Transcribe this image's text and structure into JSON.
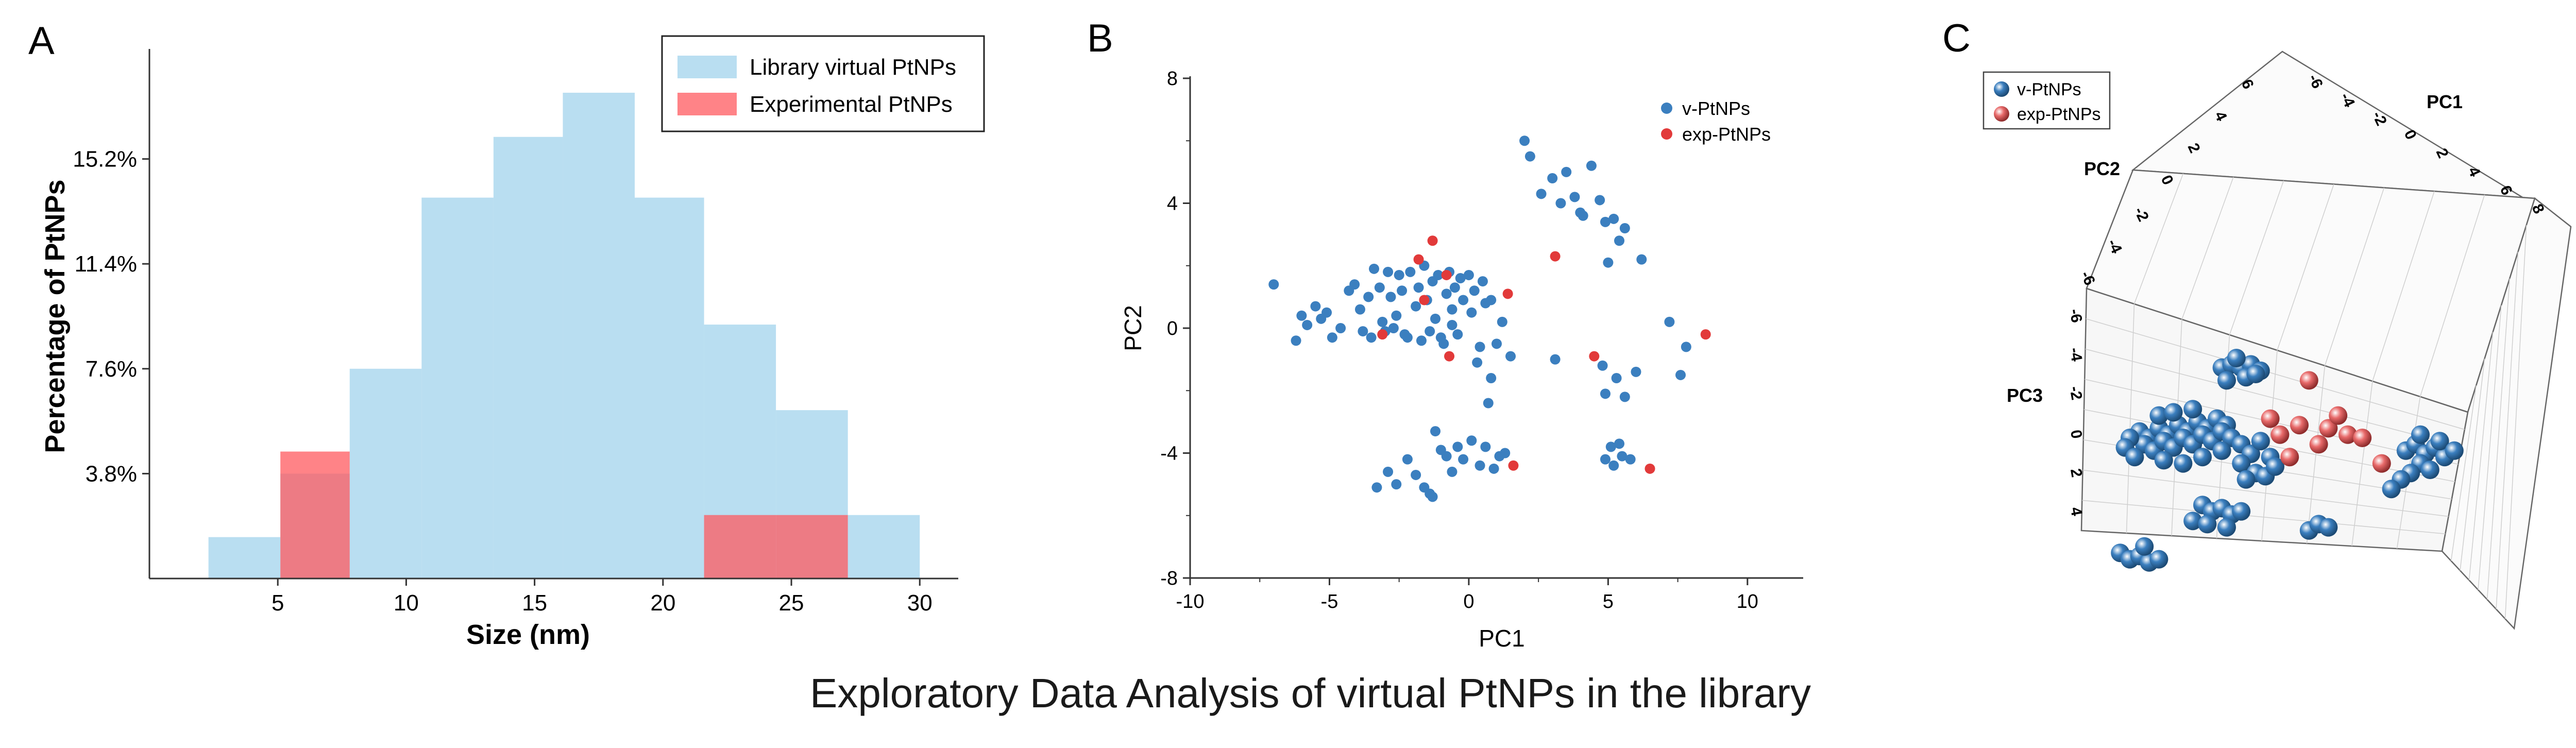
{
  "caption": "Exploratory Data Analysis of virtual PtNPs in the library",
  "colors": {
    "library": "#add8ee",
    "experimental": "#ff5a5f",
    "vptnps": "#3b7fbf",
    "expptnps": "#e23a3a",
    "axis": "#333333"
  },
  "panels": {
    "A": {
      "letter": "A"
    },
    "B": {
      "letter": "B"
    },
    "C": {
      "letter": "C"
    }
  },
  "chart_data": [
    {
      "panel": "A",
      "type": "bar",
      "subtype": "overlapping histogram",
      "xlabel": "Size (nm)",
      "ylabel": "Percentage of PtNPs",
      "xlim": [
        0,
        31.5
      ],
      "ylim": [
        0,
        19
      ],
      "xticks": [
        5,
        10,
        15,
        20,
        25,
        30
      ],
      "xtick_labels": [
        "5",
        "10",
        "15",
        "20",
        "25",
        "30"
      ],
      "yticks": [
        3.8,
        7.6,
        11.4,
        15.2
      ],
      "ytick_labels": [
        "3.8%",
        "7.6%",
        "11.4%",
        "15.2%"
      ],
      "bin_edges": [
        2.3,
        5.1,
        7.8,
        10.6,
        13.4,
        16.1,
        18.9,
        21.6,
        24.4,
        27.2,
        30.0
      ],
      "series": [
        {
          "name": "Library virtual PtNPs",
          "color": "#add8ee",
          "values": [
            1.5,
            3.8,
            7.6,
            13.8,
            16.0,
            17.6,
            13.8,
            9.2,
            6.1,
            2.3
          ]
        },
        {
          "name": "Experimental PtNPs",
          "color": "#ff5a5f",
          "values": [
            0,
            4.6,
            0,
            0,
            0,
            0,
            0,
            2.3,
            2.3,
            0
          ]
        }
      ],
      "legend_position": "top-right"
    },
    {
      "panel": "B",
      "type": "scatter",
      "xlabel": "PC1",
      "ylabel": "PC2",
      "xlim": [
        -10,
        12
      ],
      "ylim": [
        -8,
        8
      ],
      "xticks": [
        -10,
        -5,
        0,
        5,
        10
      ],
      "xtick_labels": [
        "-10",
        "-5",
        "0",
        "5",
        "10"
      ],
      "yticks": [
        -8,
        -4,
        0,
        4,
        8
      ],
      "ytick_labels": [
        "-8",
        "-4",
        "0",
        "4",
        "8"
      ],
      "legend_position": "top-right",
      "series": [
        {
          "name": "v-PtNPs",
          "color": "#3b7fbf",
          "points": [
            [
              -7.0,
              1.4
            ],
            [
              -6.2,
              -0.4
            ],
            [
              -6.0,
              0.4
            ],
            [
              -5.8,
              0.1
            ],
            [
              -5.5,
              0.7
            ],
            [
              -5.3,
              0.3
            ],
            [
              -5.1,
              0.5
            ],
            [
              -4.9,
              -0.3
            ],
            [
              -4.6,
              0.0
            ],
            [
              -4.3,
              1.2
            ],
            [
              -4.1,
              1.4
            ],
            [
              -3.9,
              0.6
            ],
            [
              -3.8,
              -0.1
            ],
            [
              -3.6,
              1.0
            ],
            [
              -3.4,
              1.9
            ],
            [
              -3.2,
              1.3
            ],
            [
              -3.1,
              0.2
            ],
            [
              -2.9,
              1.8
            ],
            [
              -2.8,
              1.0
            ],
            [
              -2.6,
              0.4
            ],
            [
              -2.5,
              1.7
            ],
            [
              -2.4,
              1.2
            ],
            [
              -2.2,
              -0.3
            ],
            [
              -2.1,
              1.8
            ],
            [
              -1.9,
              0.7
            ],
            [
              -1.8,
              1.3
            ],
            [
              -1.7,
              -0.4
            ],
            [
              -1.6,
              2.0
            ],
            [
              -1.5,
              0.9
            ],
            [
              -1.3,
              1.5
            ],
            [
              -1.2,
              0.3
            ],
            [
              -1.1,
              1.7
            ],
            [
              -0.9,
              -0.5
            ],
            [
              -0.8,
              1.1
            ],
            [
              -0.7,
              1.8
            ],
            [
              -0.6,
              0.6
            ],
            [
              -0.5,
              1.3
            ],
            [
              -0.4,
              -0.2
            ],
            [
              -0.3,
              1.6
            ],
            [
              -0.2,
              0.9
            ],
            [
              0.0,
              1.7
            ],
            [
              0.1,
              0.5
            ],
            [
              0.2,
              1.2
            ],
            [
              0.4,
              -0.6
            ],
            [
              0.5,
              1.5
            ],
            [
              0.6,
              0.8
            ],
            [
              0.8,
              0.9
            ],
            [
              1.0,
              -0.5
            ],
            [
              1.2,
              0.2
            ],
            [
              1.5,
              -0.9
            ],
            [
              -3.5,
              -0.3
            ],
            [
              -3.0,
              -0.1
            ],
            [
              -2.7,
              0.0
            ],
            [
              -2.3,
              -0.2
            ],
            [
              -1.4,
              -0.1
            ],
            [
              -1.0,
              -0.3
            ],
            [
              -0.6,
              0.1
            ],
            [
              0.3,
              -1.1
            ],
            [
              0.8,
              -1.6
            ],
            [
              0.7,
              -2.4
            ],
            [
              -3.3,
              -5.1
            ],
            [
              -2.9,
              -4.6
            ],
            [
              -2.6,
              -5.0
            ],
            [
              -2.2,
              -4.2
            ],
            [
              -1.9,
              -4.7
            ],
            [
              -1.6,
              -5.1
            ],
            [
              -1.4,
              -5.3
            ],
            [
              -1.2,
              -3.3
            ],
            [
              -1.0,
              -3.9
            ],
            [
              -0.8,
              -4.1
            ],
            [
              -0.6,
              -4.6
            ],
            [
              -0.4,
              -3.8
            ],
            [
              -0.2,
              -4.2
            ],
            [
              0.1,
              -3.6
            ],
            [
              0.4,
              -4.4
            ],
            [
              0.6,
              -3.8
            ],
            [
              0.9,
              -4.5
            ],
            [
              1.1,
              -4.1
            ],
            [
              1.3,
              -4.0
            ],
            [
              -1.3,
              -5.4
            ],
            [
              2.0,
              6.0
            ],
            [
              2.2,
              5.5
            ],
            [
              2.6,
              4.3
            ],
            [
              3.0,
              4.8
            ],
            [
              3.3,
              4.0
            ],
            [
              3.5,
              5.0
            ],
            [
              3.8,
              4.2
            ],
            [
              4.1,
              3.6
            ],
            [
              4.4,
              5.2
            ],
            [
              4.7,
              4.1
            ],
            [
              4.9,
              3.4
            ],
            [
              5.2,
              3.5
            ],
            [
              5.0,
              2.1
            ],
            [
              5.6,
              3.2
            ],
            [
              6.2,
              2.2
            ],
            [
              5.4,
              2.8
            ],
            [
              4.0,
              3.7
            ],
            [
              3.1,
              -1.0
            ],
            [
              4.8,
              -1.2
            ],
            [
              5.3,
              -1.6
            ],
            [
              4.9,
              -2.1
            ],
            [
              5.6,
              -2.2
            ],
            [
              6.0,
              -1.4
            ],
            [
              7.2,
              0.2
            ],
            [
              7.8,
              -0.6
            ],
            [
              7.6,
              -1.5
            ],
            [
              5.2,
              -4.4
            ],
            [
              5.5,
              -4.1
            ],
            [
              4.9,
              -4.2
            ],
            [
              5.1,
              -3.8
            ],
            [
              5.4,
              -3.7
            ],
            [
              5.8,
              -4.2
            ]
          ]
        },
        {
          "name": "exp-PtNPs",
          "color": "#e23a3a",
          "points": [
            [
              -1.3,
              2.8
            ],
            [
              -1.8,
              2.2
            ],
            [
              -0.8,
              1.7
            ],
            [
              -1.6,
              0.9
            ],
            [
              1.4,
              1.1
            ],
            [
              -3.1,
              -0.2
            ],
            [
              -0.7,
              -0.9
            ],
            [
              3.1,
              2.3
            ],
            [
              4.5,
              -0.9
            ],
            [
              8.5,
              -0.2
            ],
            [
              6.5,
              -4.5
            ],
            [
              1.6,
              -4.4
            ]
          ]
        }
      ]
    },
    {
      "panel": "C",
      "type": "scatter",
      "subtype": "3d scatter",
      "axes": [
        "PC1",
        "PC2",
        "PC3"
      ],
      "pc1_ticks": [
        "-6",
        "-4",
        "-2",
        "0",
        "2",
        "4",
        "6",
        "8"
      ],
      "pc2_ticks": [
        "6",
        "4",
        "2",
        "0",
        "-2",
        "-4",
        "-6"
      ],
      "pc3_ticks": [
        "-6",
        "-4",
        "-2",
        "0",
        "2",
        "4"
      ],
      "legend_position": "top-left",
      "series": [
        {
          "name": "v-PtNPs",
          "color": "#3b7fbf",
          "points_projected": [
            [
              0.29,
              0.28
            ],
            [
              0.31,
              0.27
            ],
            [
              0.33,
              0.28
            ],
            [
              0.35,
              0.27
            ],
            [
              0.37,
              0.29
            ],
            [
              0.3,
              0.32
            ],
            [
              0.34,
              0.31
            ],
            [
              0.36,
              0.3
            ],
            [
              0.32,
              0.25
            ],
            [
              0.12,
              0.48
            ],
            [
              0.14,
              0.5
            ],
            [
              0.16,
              0.47
            ],
            [
              0.18,
              0.49
            ],
            [
              0.2,
              0.46
            ],
            [
              0.22,
              0.48
            ],
            [
              0.24,
              0.45
            ],
            [
              0.26,
              0.47
            ],
            [
              0.28,
              0.44
            ],
            [
              0.3,
              0.46
            ],
            [
              0.13,
              0.52
            ],
            [
              0.15,
              0.54
            ],
            [
              0.17,
              0.51
            ],
            [
              0.19,
              0.53
            ],
            [
              0.21,
              0.5
            ],
            [
              0.23,
              0.52
            ],
            [
              0.25,
              0.49
            ],
            [
              0.27,
              0.51
            ],
            [
              0.29,
              0.48
            ],
            [
              0.31,
              0.5
            ],
            [
              0.1,
              0.5
            ],
            [
              0.09,
              0.53
            ],
            [
              0.17,
              0.57
            ],
            [
              0.21,
              0.58
            ],
            [
              0.25,
              0.56
            ],
            [
              0.29,
              0.54
            ],
            [
              0.33,
              0.52
            ],
            [
              0.35,
              0.55
            ],
            [
              0.37,
              0.51
            ],
            [
              0.39,
              0.56
            ],
            [
              0.16,
              0.43
            ],
            [
              0.19,
              0.42
            ],
            [
              0.23,
              0.41
            ],
            [
              0.11,
              0.56
            ],
            [
              0.33,
              0.58
            ],
            [
              0.36,
              0.61
            ],
            [
              0.34,
              0.63
            ],
            [
              0.38,
              0.62
            ],
            [
              0.4,
              0.59
            ],
            [
              0.67,
              0.54
            ],
            [
              0.69,
              0.52
            ],
            [
              0.71,
              0.55
            ],
            [
              0.73,
              0.53
            ],
            [
              0.75,
              0.56
            ],
            [
              0.7,
              0.58
            ],
            [
              0.72,
              0.6
            ],
            [
              0.68,
              0.61
            ],
            [
              0.66,
              0.63
            ],
            [
              0.74,
              0.51
            ],
            [
              0.64,
              0.66
            ],
            [
              0.77,
              0.54
            ],
            [
              0.7,
              0.49
            ],
            [
              0.25,
              0.71
            ],
            [
              0.27,
              0.73
            ],
            [
              0.29,
              0.72
            ],
            [
              0.31,
              0.74
            ],
            [
              0.33,
              0.73
            ],
            [
              0.23,
              0.76
            ],
            [
              0.26,
              0.77
            ],
            [
              0.3,
              0.78
            ],
            [
              0.47,
              0.79
            ],
            [
              0.49,
              0.77
            ],
            [
              0.51,
              0.78
            ],
            [
              0.08,
              0.86
            ],
            [
              0.1,
              0.88
            ],
            [
              0.12,
              0.87
            ],
            [
              0.14,
              0.89
            ],
            [
              0.16,
              0.88
            ],
            [
              0.13,
              0.84
            ]
          ]
        },
        {
          "name": "exp-PtNPs",
          "color": "#e86a6a",
          "points_projected": [
            [
              0.47,
              0.32
            ],
            [
              0.51,
              0.47
            ],
            [
              0.55,
              0.49
            ],
            [
              0.49,
              0.52
            ],
            [
              0.43,
              0.56
            ],
            [
              0.41,
              0.49
            ],
            [
              0.45,
              0.46
            ],
            [
              0.39,
              0.44
            ],
            [
              0.58,
              0.5
            ],
            [
              0.62,
              0.58
            ],
            [
              0.53,
              0.43
            ]
          ]
        }
      ]
    }
  ]
}
